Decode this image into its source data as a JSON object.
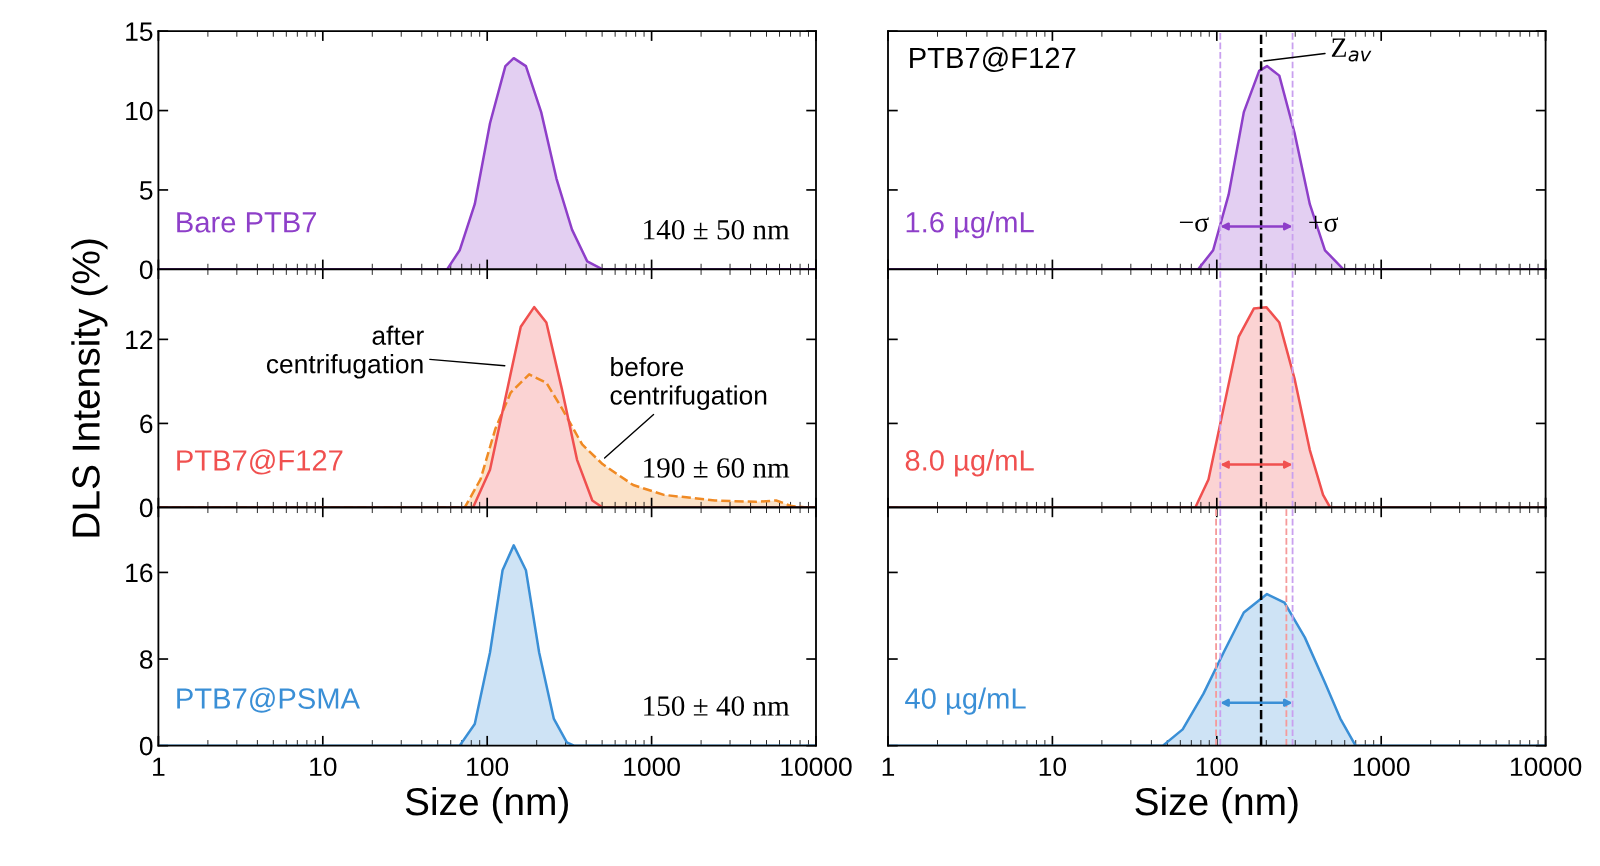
{
  "chart_data": [
    {
      "type": "area",
      "log": "x",
      "xlim": [
        1,
        10000
      ],
      "xticks": [
        1,
        10,
        100,
        1000,
        10000
      ],
      "ylim": [
        0,
        15
      ],
      "yticks": [
        0,
        5,
        10,
        15
      ],
      "tick_labels": "y",
      "series": [
        {
          "name": "Bare PTB7",
          "color": "#8e3fc9",
          "x": [
            1,
            57,
            68,
            84,
            104,
            129,
            145,
            172,
            213,
            264,
            328,
            406,
            503,
            10000
          ],
          "values": [
            0,
            0,
            1.2,
            4.1,
            9.2,
            12.8,
            13.3,
            12.8,
            9.9,
            5.7,
            2.5,
            0.5,
            0,
            0
          ]
        }
      ],
      "annotations": [
        "140 ± 50 nm"
      ]
    },
    {
      "type": "area",
      "log": "x",
      "xlim": [
        1,
        10000
      ],
      "xticks": [
        1,
        10,
        100,
        1000,
        10000
      ],
      "ylim": [
        0,
        15
      ],
      "yticks": [
        0,
        5,
        10,
        15
      ],
      "tick_labels": false,
      "series": [
        {
          "name": "1.6 µg/mL",
          "color": "#8e3fc9",
          "x": [
            1,
            77,
            95,
            118,
            146,
            181,
            202,
            240,
            297,
            368,
            455,
            589,
            10000
          ],
          "values": [
            0,
            0,
            1.2,
            4.7,
            9.9,
            12.5,
            12.8,
            12.2,
            8.6,
            4.1,
            1.2,
            0,
            0
          ]
        }
      ],
      "ref_lines": [
        {
          "axis": "x",
          "value": 186,
          "color": "#000000",
          "line_style": "dashed"
        },
        {
          "axis": "x",
          "value": 105,
          "color": "#c9a0ef",
          "line_style": "dashed"
        },
        {
          "axis": "x",
          "value": 289,
          "color": "#c9a0ef",
          "line_style": "dashed"
        }
      ],
      "annotations": [
        "PTB7@F127",
        {
          "text": "−σ",
          "x": 105,
          "y": 2.8
        },
        {
          "text": "+σ",
          "x": 289,
          "y": 2.8
        },
        {
          "text": "Z$_{av}$",
          "x": 186,
          "y": 13.1
        }
      ]
    },
    {
      "type": "area",
      "log": "x",
      "xlim": [
        1,
        10000
      ],
      "xticks": [
        1,
        10,
        100,
        1000,
        10000
      ],
      "ylim": [
        0,
        17
      ],
      "yticks": [
        0,
        6,
        12
      ],
      "tick_labels": "y",
      "ylabel": "DLS Intensity (%)",
      "series": [
        {
          "color": "#f08a24",
          "line_style": "dashed",
          "x": [
            1,
            73,
            91,
            112,
            139,
            180,
            229,
            284,
            378,
            503,
            773,
            1188,
            2427,
            4305,
            5728,
            7096,
            8790,
            10000
          ],
          "values": [
            0,
            0,
            2.0,
            5.6,
            8.2,
            9.5,
            8.9,
            7.1,
            4.5,
            3.1,
            1.6,
            0.9,
            0.5,
            0.4,
            0.5,
            0.1,
            0,
            0
          ]
        },
        {
          "name": "PTB7@F127",
          "color": "#f0504f",
          "x": [
            1,
            82,
            104,
            129,
            160,
            193,
            229,
            284,
            352,
            436,
            503,
            10000
          ],
          "values": [
            0,
            0,
            2.7,
            7.8,
            12.9,
            14.3,
            13.2,
            8.5,
            3.4,
            0.5,
            0,
            0
          ]
        }
      ],
      "annotations": [
        "190 ± 60 nm",
        {
          "text": "after\ncentrifugation",
          "x": 133,
          "y": 10.1
        },
        {
          "text": "before\ncentrifugation",
          "x": 503,
          "y": 3.4
        }
      ]
    },
    {
      "type": "area",
      "log": "x",
      "xlim": [
        1,
        10000
      ],
      "xticks": [
        1,
        10,
        100,
        1000,
        10000
      ],
      "ylim": [
        0,
        17
      ],
      "yticks": [
        0,
        6,
        12
      ],
      "tick_labels": false,
      "series": [
        {
          "name": "8.0 µg/mL",
          "color": "#f0504f",
          "x": [
            1,
            74,
            89,
            110,
            136,
            168,
            200,
            240,
            297,
            368,
            443,
            489,
            10000
          ],
          "values": [
            0,
            0,
            2.0,
            7.1,
            12.2,
            14.2,
            14.3,
            13.2,
            9.2,
            4.1,
            0.9,
            0,
            0
          ]
        }
      ],
      "ref_lines": [
        {
          "axis": "x",
          "value": 186,
          "color": "#000000",
          "line_style": "dashed"
        },
        {
          "axis": "x",
          "value": 105,
          "color": "#c9a0ef",
          "line_style": "dashed"
        },
        {
          "axis": "x",
          "value": 289,
          "color": "#c9a0ef",
          "line_style": "dashed"
        }
      ]
    },
    {
      "type": "area",
      "log": "x",
      "xlim": [
        1,
        10000
      ],
      "xticks": [
        1,
        10,
        100,
        1000,
        10000
      ],
      "ylim": [
        0,
        22
      ],
      "yticks": [
        0,
        8,
        16
      ],
      "xlabel": "Size (nm)",
      "series": [
        {
          "name": "PTB7@PSMA",
          "color": "#3a8fd6",
          "x": [
            1,
            68,
            84,
            104,
            124,
            145,
            172,
            207,
            254,
            305,
            337,
            10000
          ],
          "values": [
            0,
            0,
            2.0,
            8.6,
            16.2,
            18.5,
            16.2,
            8.6,
            2.5,
            0.3,
            0,
            0
          ]
        }
      ],
      "annotations": [
        "150 ± 40 nm"
      ]
    },
    {
      "type": "area",
      "log": "x",
      "xlim": [
        1,
        10000
      ],
      "xticks": [
        1,
        10,
        100,
        1000,
        10000
      ],
      "ylim": [
        0,
        22
      ],
      "yticks": [
        0,
        8,
        16
      ],
      "tick_labels": "x",
      "xlabel": "Size (nm)",
      "series": [
        {
          "name": "40 µg/mL",
          "color": "#3a8fd6",
          "x": [
            1,
            47,
            62,
            83,
            110,
            146,
            202,
            258,
            343,
            455,
            564,
            698,
            10000
          ],
          "values": [
            0,
            0,
            1.5,
            4.8,
            8.6,
            12.3,
            14.0,
            13.2,
            10.0,
            5.8,
            2.5,
            0,
            0
          ]
        }
      ],
      "ref_lines": [
        {
          "axis": "x",
          "value": 186,
          "color": "#000000",
          "line_style": "dashed"
        },
        {
          "axis": "x",
          "value": 105,
          "color": "#c9a0ef",
          "line_style": "dashed"
        },
        {
          "axis": "x",
          "value": 289,
          "color": "#c9a0ef",
          "line_style": "dashed"
        },
        {
          "axis": "x",
          "value": 99,
          "color": "#f59a9a",
          "line_style": "dashed"
        },
        {
          "axis": "x",
          "value": 265,
          "color": "#f59a9a",
          "line_style": "dashed"
        }
      ]
    }
  ]
}
